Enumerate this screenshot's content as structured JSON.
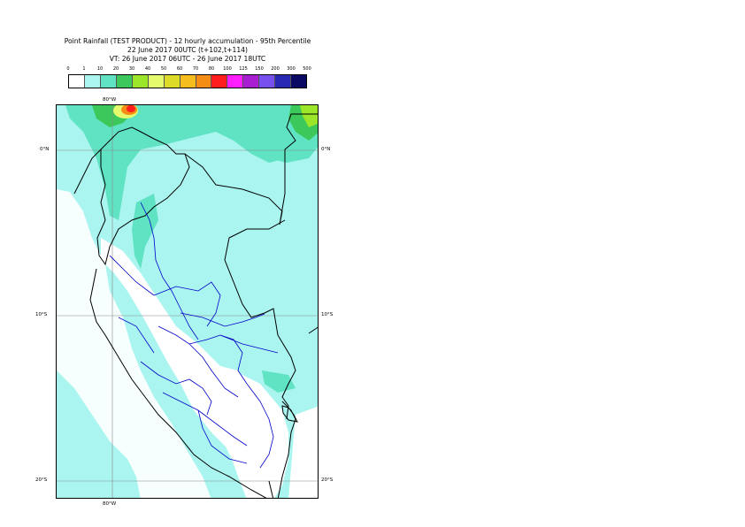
{
  "header": {
    "title": "Point Rainfall (TEST PRODUCT) - 12 hourly accumulation - 95th Percentile",
    "base_time": "22 June 2017 00UTC (t+102,t+114)",
    "valid_time": "VT: 26 June 2017 06UTC - 26 June 2017 18UTC"
  },
  "legend": {
    "ticks": [
      "0",
      "1",
      "10",
      "20",
      "30",
      "40",
      "50",
      "60",
      "70",
      "80",
      "100",
      "125",
      "150",
      "200",
      "300",
      "500"
    ],
    "colors": [
      "#ffffff",
      "#aaf5f0",
      "#5fe3c3",
      "#3cc85a",
      "#9be628",
      "#e6fa6e",
      "#dcdc28",
      "#f5be1e",
      "#f58c14",
      "#ff1e1e",
      "#ff1eff",
      "#aa1ed2",
      "#7850f0",
      "#2828b4",
      "#0a0a64"
    ]
  },
  "map": {
    "lon_label_top": "80°W",
    "lon_label_bottom": "80°W",
    "lat_left": [
      "0°N",
      "10°S",
      "20°S"
    ],
    "lat_right": [
      "0°N",
      "10°S",
      "20°S"
    ]
  }
}
